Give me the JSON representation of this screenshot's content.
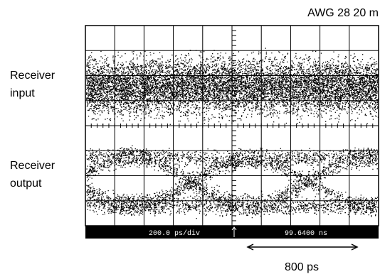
{
  "header": {
    "title": "AWG 28 20 m"
  },
  "labels": {
    "top": [
      "Receiver",
      "input"
    ],
    "bottom": [
      "Receiver",
      "output"
    ]
  },
  "status": {
    "scale": "200.0 ps/div",
    "position": "99.6400 ns"
  },
  "arrow": {
    "label": "800 ps"
  }
}
